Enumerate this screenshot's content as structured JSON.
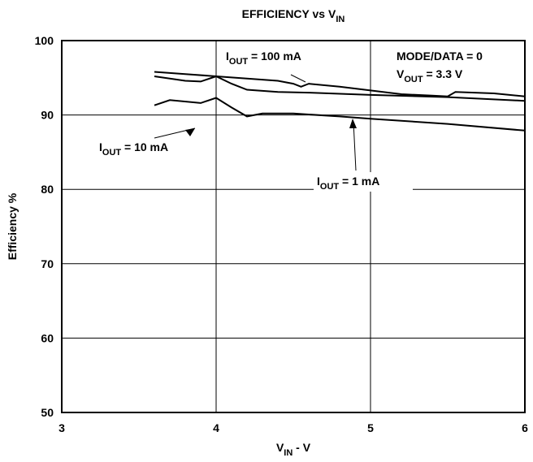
{
  "chart_data": {
    "type": "line",
    "title": [
      "EFFICIENCY vs V",
      "IN"
    ],
    "x_label": [
      "V",
      "IN",
      " - V"
    ],
    "y_label": "Efficiency %",
    "xlim": [
      3,
      6
    ],
    "xticks": [
      3,
      4,
      5,
      6
    ],
    "ylim": [
      50,
      100
    ],
    "yticks": [
      50,
      60,
      70,
      80,
      90,
      100
    ],
    "grid": true,
    "annotations": [
      [
        "MODE/DATA = 0"
      ],
      [
        "V",
        "OUT",
        " = 3.3 V"
      ]
    ],
    "series": [
      {
        "name": [
          "I",
          "OUT",
          " = 100 mA"
        ],
        "color": "#000000",
        "x": [
          3.6,
          3.8,
          4.0,
          4.2,
          4.4,
          4.5,
          4.55,
          4.6,
          4.8,
          5.0,
          5.2,
          5.4,
          5.5,
          5.55,
          5.8,
          6.0
        ],
        "values": [
          95.8,
          95.5,
          95.2,
          94.9,
          94.6,
          94.2,
          93.8,
          94.2,
          93.8,
          93.3,
          92.8,
          92.6,
          92.5,
          93.1,
          92.9,
          92.5
        ]
      },
      {
        "name": [
          "I",
          "OUT",
          " = 10 mA"
        ],
        "color": "#000000",
        "x": [
          3.6,
          3.8,
          3.9,
          4.0,
          4.1,
          4.2,
          4.4,
          4.6,
          5.0,
          5.5,
          6.0
        ],
        "values": [
          95.2,
          94.6,
          94.5,
          95.2,
          94.2,
          93.4,
          93.1,
          93.0,
          92.7,
          92.4,
          91.9
        ]
      },
      {
        "name": [
          "I",
          "OUT",
          " = 1 mA"
        ],
        "color": "#000000",
        "x": [
          3.6,
          3.7,
          3.9,
          4.0,
          4.1,
          4.2,
          4.3,
          4.5,
          4.8,
          5.0,
          5.5,
          6.0
        ],
        "values": [
          91.3,
          92.0,
          91.6,
          92.3,
          91.0,
          89.8,
          90.2,
          90.2,
          89.8,
          89.5,
          88.8,
          87.9
        ]
      }
    ]
  }
}
